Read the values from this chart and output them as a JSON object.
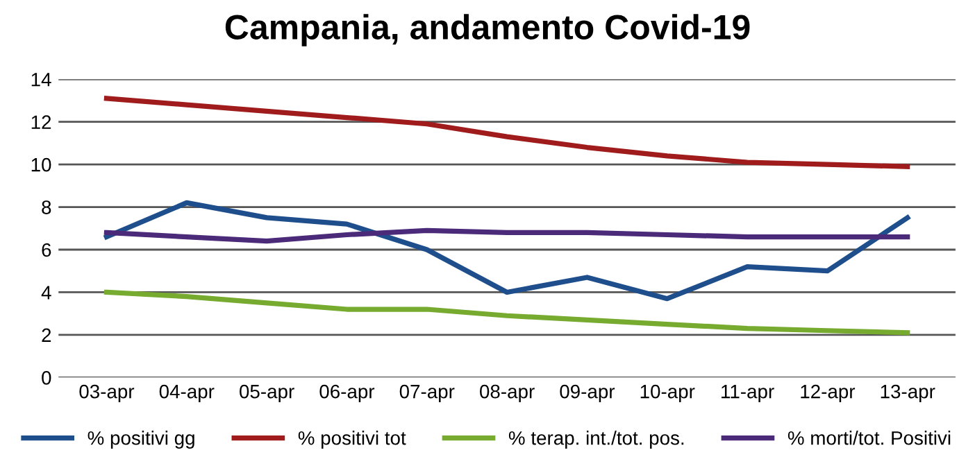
{
  "chart_data": {
    "type": "line",
    "title": "Campania, andamento Covid-19",
    "categories": [
      "03-apr",
      "04-apr",
      "05-apr",
      "06-apr",
      "07-apr",
      "08-apr",
      "09-apr",
      "10-apr",
      "11-apr",
      "12-apr",
      "13-apr"
    ],
    "series": [
      {
        "name": "% positivi gg",
        "color": "#1f4e8c",
        "values": [
          6.6,
          8.2,
          7.5,
          7.2,
          6.0,
          4.0,
          4.7,
          3.7,
          5.2,
          5.0,
          7.5
        ]
      },
      {
        "name": "% positivi tot",
        "color": "#a01c1c",
        "values": [
          13.1,
          12.8,
          12.5,
          12.2,
          11.9,
          11.3,
          10.8,
          10.4,
          10.1,
          10.0,
          9.9
        ]
      },
      {
        "name": "% terap. int./tot. pos.",
        "color": "#77ab2f",
        "values": [
          4.0,
          3.8,
          3.5,
          3.2,
          3.2,
          2.9,
          2.7,
          2.5,
          2.3,
          2.2,
          2.1
        ]
      },
      {
        "name": "% morti/tot. Positivi",
        "color": "#4b2a7a",
        "values": [
          6.8,
          6.6,
          6.4,
          6.7,
          6.9,
          6.8,
          6.8,
          6.7,
          6.6,
          6.6,
          6.6
        ]
      }
    ],
    "ylim": [
      0,
      14
    ],
    "yticks": [
      0,
      2,
      4,
      6,
      8,
      10,
      12,
      14
    ],
    "grid": "y",
    "legend": "bottom",
    "marker": "none",
    "line_style": "solid"
  }
}
